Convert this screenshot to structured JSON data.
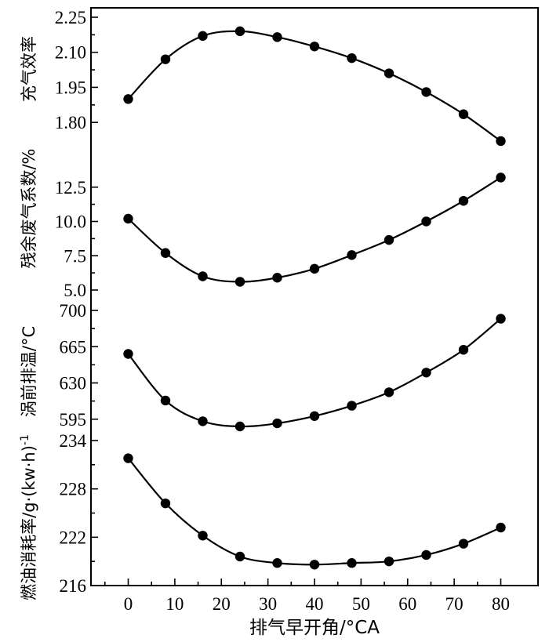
{
  "chart_data": {
    "type": "line",
    "xlabel": "排气早开角/°CA",
    "x_ticks": [
      "0",
      "10",
      "20",
      "30",
      "40",
      "50",
      "60",
      "70",
      "80"
    ],
    "xlim": [
      -8,
      88
    ],
    "x": [
      0,
      8,
      16,
      24,
      32,
      40,
      48,
      56,
      64,
      72,
      80
    ],
    "panels": [
      {
        "ylabel": "充气效率",
        "y_ticks": [
          "1.80",
          "1.95",
          "2.10",
          "2.25"
        ],
        "ylim": [
          1.72,
          2.25
        ],
        "values": [
          1.9,
          2.07,
          2.17,
          2.19,
          2.165,
          2.125,
          2.075,
          2.01,
          1.93,
          1.835,
          1.72
        ]
      },
      {
        "ylabel": "残余废气系数/%",
        "y_ticks": [
          "5.0",
          "7.5",
          "10.0",
          "12.5"
        ],
        "ylim": [
          5.0,
          13.8
        ],
        "values": [
          10.2,
          7.7,
          6.0,
          5.6,
          5.9,
          6.55,
          7.55,
          8.65,
          10.0,
          11.5,
          13.2
        ]
      },
      {
        "ylabel": "涡前排温/°C",
        "y_ticks": [
          "595",
          "630",
          "665",
          "700"
        ],
        "ylim": [
          588,
          700
        ],
        "values": [
          658,
          613,
          593,
          588,
          591,
          598,
          608,
          621,
          640,
          662,
          692
        ]
      },
      {
        "ylabel_main": "燃油消耗率/g·(kw·h)",
        "ylabel_sup": "-1",
        "y_ticks": [
          "216",
          "222",
          "228",
          "234"
        ],
        "ylim": [
          216,
          234
        ],
        "values": [
          231.8,
          226.2,
          222.2,
          219.6,
          218.8,
          218.6,
          218.8,
          219.0,
          219.8,
          221.2,
          223.2
        ]
      }
    ]
  }
}
